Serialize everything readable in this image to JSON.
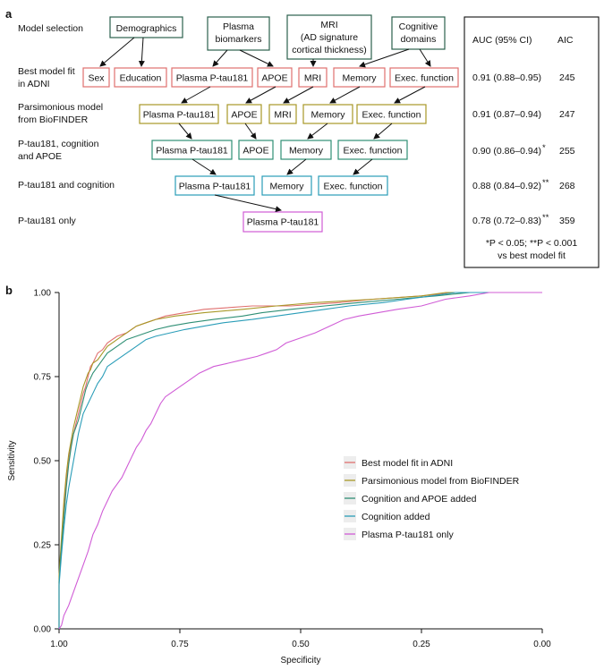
{
  "panel_a": {
    "label": "a",
    "row_labels": {
      "model_selection": "Model selection",
      "best_model": [
        "Best model fit",
        "in ADNI"
      ],
      "parsimonious": [
        "Parsimonious model",
        "from BioFINDER"
      ],
      "cog_apoe": [
        "P-tau181, cognition",
        "and APOE"
      ],
      "cog": "P-tau181 and cognition",
      "ptau_only": "P-tau181 only"
    },
    "headers": {
      "demographics": "Demographics",
      "plasma_biomarkers": [
        "Plasma",
        "biomarkers"
      ],
      "mri": [
        "MRI",
        "(AD signature",
        "cortical thickness)"
      ],
      "cognitive_domains": [
        "Cognitive",
        "domains"
      ]
    },
    "rows": {
      "best": [
        "Sex",
        "Education",
        "Plasma P-tau181",
        "APOE",
        "MRI",
        "Memory",
        "Exec. function"
      ],
      "parsimonious": [
        "Plasma P-tau181",
        "APOE",
        "MRI",
        "Memory",
        "Exec. function"
      ],
      "cog_apoe": [
        "Plasma P-tau181",
        "APOE",
        "Memory",
        "Exec. function"
      ],
      "cog": [
        "Plasma P-tau181",
        "Memory",
        "Exec. function"
      ],
      "ptau_only": [
        "Plasma P-tau181"
      ]
    },
    "table": {
      "header_auc": "AUC (95% CI)",
      "header_aic": "AIC",
      "rows": [
        {
          "auc": "0.91 (0.88–0.95)",
          "aic": "245",
          "sig": ""
        },
        {
          "auc": "0.91 (0.87–0.94)",
          "aic": "247",
          "sig": ""
        },
        {
          "auc": "0.90 (0.86–0.94)",
          "aic": "255",
          "sig": "*"
        },
        {
          "auc": "0.88 (0.84–0.92)",
          "aic": "268",
          "sig": "**"
        },
        {
          "auc": "0.78 (0.72–0.83)",
          "aic": "359",
          "sig": "**"
        }
      ],
      "footnote_1": "*P < 0.05; **P < 0.001",
      "footnote_2": "vs best model fit"
    },
    "colors": {
      "best": "#e0706f",
      "parsimonious": "#a89827",
      "cog_apoe": "#2f8f75",
      "cog": "#2a9db8",
      "ptau": "#d05cd6",
      "header_border": "#2b604d"
    }
  },
  "panel_b": {
    "label": "b",
    "chart_data": {
      "type": "line",
      "title": "",
      "xlabel": "Specificity",
      "ylabel": "Sensitivity",
      "xlim": [
        1.0,
        0.0
      ],
      "ylim": [
        0.0,
        1.0
      ],
      "xticks": [
        "1.00",
        "0.75",
        "0.50",
        "0.25",
        "0.00"
      ],
      "xtick_values": [
        1.0,
        0.75,
        0.5,
        0.25,
        0.0
      ],
      "yticks": [
        "0.00",
        "0.25",
        "0.50",
        "0.75",
        "1.00"
      ],
      "ytick_values": [
        0.0,
        0.25,
        0.5,
        0.75,
        1.0
      ],
      "legend_position": "bottom-right",
      "series": [
        {
          "name": "Best model fit in ADNI",
          "color": "#e0706f",
          "points": [
            [
              1.0,
              0.0
            ],
            [
              1.0,
              0.14
            ],
            [
              0.995,
              0.25
            ],
            [
              0.99,
              0.35
            ],
            [
              0.985,
              0.44
            ],
            [
              0.98,
              0.5
            ],
            [
              0.975,
              0.55
            ],
            [
              0.97,
              0.58
            ],
            [
              0.965,
              0.61
            ],
            [
              0.96,
              0.64
            ],
            [
              0.955,
              0.67
            ],
            [
              0.95,
              0.7
            ],
            [
              0.945,
              0.72
            ],
            [
              0.94,
              0.75
            ],
            [
              0.935,
              0.78
            ],
            [
              0.93,
              0.79
            ],
            [
              0.92,
              0.82
            ],
            [
              0.91,
              0.83
            ],
            [
              0.9,
              0.85
            ],
            [
              0.88,
              0.87
            ],
            [
              0.86,
              0.88
            ],
            [
              0.84,
              0.9
            ],
            [
              0.82,
              0.91
            ],
            [
              0.8,
              0.92
            ],
            [
              0.78,
              0.93
            ],
            [
              0.74,
              0.94
            ],
            [
              0.7,
              0.95
            ],
            [
              0.6,
              0.96
            ],
            [
              0.52,
              0.96
            ],
            [
              0.42,
              0.97
            ],
            [
              0.35,
              0.98
            ],
            [
              0.25,
              0.99
            ],
            [
              0.18,
              1.0
            ],
            [
              0.0,
              1.0
            ]
          ]
        },
        {
          "name": "Parsimonious model from BioFINDER",
          "color": "#a89827",
          "points": [
            [
              1.0,
              0.0
            ],
            [
              1.0,
              0.16
            ],
            [
              0.995,
              0.27
            ],
            [
              0.99,
              0.38
            ],
            [
              0.985,
              0.46
            ],
            [
              0.98,
              0.52
            ],
            [
              0.975,
              0.56
            ],
            [
              0.97,
              0.6
            ],
            [
              0.965,
              0.63
            ],
            [
              0.96,
              0.66
            ],
            [
              0.955,
              0.69
            ],
            [
              0.95,
              0.72
            ],
            [
              0.945,
              0.74
            ],
            [
              0.94,
              0.76
            ],
            [
              0.935,
              0.77
            ],
            [
              0.93,
              0.79
            ],
            [
              0.92,
              0.8
            ],
            [
              0.91,
              0.82
            ],
            [
              0.9,
              0.84
            ],
            [
              0.88,
              0.86
            ],
            [
              0.86,
              0.88
            ],
            [
              0.84,
              0.9
            ],
            [
              0.82,
              0.91
            ],
            [
              0.8,
              0.92
            ],
            [
              0.76,
              0.93
            ],
            [
              0.7,
              0.94
            ],
            [
              0.62,
              0.95
            ],
            [
              0.55,
              0.96
            ],
            [
              0.47,
              0.97
            ],
            [
              0.35,
              0.98
            ],
            [
              0.25,
              0.99
            ],
            [
              0.2,
              1.0
            ],
            [
              0.0,
              1.0
            ]
          ]
        },
        {
          "name": "Cognition and APOE added",
          "color": "#2f8f75",
          "points": [
            [
              1.0,
              0.0
            ],
            [
              1.0,
              0.14
            ],
            [
              0.995,
              0.24
            ],
            [
              0.99,
              0.33
            ],
            [
              0.985,
              0.42
            ],
            [
              0.98,
              0.49
            ],
            [
              0.975,
              0.54
            ],
            [
              0.97,
              0.58
            ],
            [
              0.96,
              0.62
            ],
            [
              0.955,
              0.65
            ],
            [
              0.95,
              0.68
            ],
            [
              0.945,
              0.71
            ],
            [
              0.94,
              0.73
            ],
            [
              0.93,
              0.76
            ],
            [
              0.92,
              0.78
            ],
            [
              0.91,
              0.8
            ],
            [
              0.9,
              0.82
            ],
            [
              0.88,
              0.84
            ],
            [
              0.86,
              0.86
            ],
            [
              0.84,
              0.87
            ],
            [
              0.82,
              0.88
            ],
            [
              0.8,
              0.89
            ],
            [
              0.77,
              0.9
            ],
            [
              0.73,
              0.91
            ],
            [
              0.68,
              0.92
            ],
            [
              0.62,
              0.93
            ],
            [
              0.58,
              0.94
            ],
            [
              0.52,
              0.95
            ],
            [
              0.45,
              0.96
            ],
            [
              0.38,
              0.97
            ],
            [
              0.3,
              0.98
            ],
            [
              0.22,
              0.99
            ],
            [
              0.15,
              1.0
            ],
            [
              0.0,
              1.0
            ]
          ]
        },
        {
          "name": "Cognition added",
          "color": "#2a9db8",
          "points": [
            [
              1.0,
              0.0
            ],
            [
              1.0,
              0.13
            ],
            [
              0.995,
              0.22
            ],
            [
              0.99,
              0.3
            ],
            [
              0.985,
              0.37
            ],
            [
              0.98,
              0.42
            ],
            [
              0.975,
              0.46
            ],
            [
              0.97,
              0.5
            ],
            [
              0.965,
              0.54
            ],
            [
              0.96,
              0.58
            ],
            [
              0.955,
              0.61
            ],
            [
              0.95,
              0.64
            ],
            [
              0.94,
              0.67
            ],
            [
              0.93,
              0.7
            ],
            [
              0.92,
              0.73
            ],
            [
              0.91,
              0.75
            ],
            [
              0.9,
              0.78
            ],
            [
              0.88,
              0.8
            ],
            [
              0.86,
              0.82
            ],
            [
              0.84,
              0.84
            ],
            [
              0.82,
              0.86
            ],
            [
              0.8,
              0.87
            ],
            [
              0.77,
              0.88
            ],
            [
              0.74,
              0.89
            ],
            [
              0.7,
              0.9
            ],
            [
              0.66,
              0.91
            ],
            [
              0.6,
              0.92
            ],
            [
              0.55,
              0.93
            ],
            [
              0.5,
              0.94
            ],
            [
              0.45,
              0.95
            ],
            [
              0.4,
              0.96
            ],
            [
              0.33,
              0.97
            ],
            [
              0.28,
              0.98
            ],
            [
              0.23,
              0.99
            ],
            [
              0.18,
              1.0
            ],
            [
              0.0,
              1.0
            ]
          ]
        },
        {
          "name": "Plasma P-tau181 only",
          "color": "#d05cd6",
          "points": [
            [
              1.0,
              0.0
            ],
            [
              0.995,
              0.01
            ],
            [
              0.99,
              0.04
            ],
            [
              0.98,
              0.07
            ],
            [
              0.97,
              0.11
            ],
            [
              0.96,
              0.15
            ],
            [
              0.95,
              0.19
            ],
            [
              0.94,
              0.23
            ],
            [
              0.93,
              0.28
            ],
            [
              0.92,
              0.31
            ],
            [
              0.91,
              0.35
            ],
            [
              0.9,
              0.38
            ],
            [
              0.89,
              0.41
            ],
            [
              0.88,
              0.43
            ],
            [
              0.87,
              0.45
            ],
            [
              0.86,
              0.48
            ],
            [
              0.85,
              0.51
            ],
            [
              0.84,
              0.54
            ],
            [
              0.83,
              0.56
            ],
            [
              0.82,
              0.59
            ],
            [
              0.81,
              0.61
            ],
            [
              0.8,
              0.64
            ],
            [
              0.79,
              0.67
            ],
            [
              0.78,
              0.69
            ],
            [
              0.77,
              0.7
            ],
            [
              0.75,
              0.72
            ],
            [
              0.73,
              0.74
            ],
            [
              0.71,
              0.76
            ],
            [
              0.68,
              0.78
            ],
            [
              0.65,
              0.79
            ],
            [
              0.62,
              0.8
            ],
            [
              0.59,
              0.81
            ],
            [
              0.57,
              0.82
            ],
            [
              0.55,
              0.83
            ],
            [
              0.53,
              0.85
            ],
            [
              0.51,
              0.86
            ],
            [
              0.49,
              0.87
            ],
            [
              0.47,
              0.88
            ],
            [
              0.44,
              0.9
            ],
            [
              0.41,
              0.92
            ],
            [
              0.38,
              0.93
            ],
            [
              0.34,
              0.94
            ],
            [
              0.3,
              0.95
            ],
            [
              0.25,
              0.96
            ],
            [
              0.2,
              0.98
            ],
            [
              0.15,
              0.99
            ],
            [
              0.11,
              1.0
            ],
            [
              0.0,
              1.0
            ]
          ]
        }
      ]
    }
  }
}
